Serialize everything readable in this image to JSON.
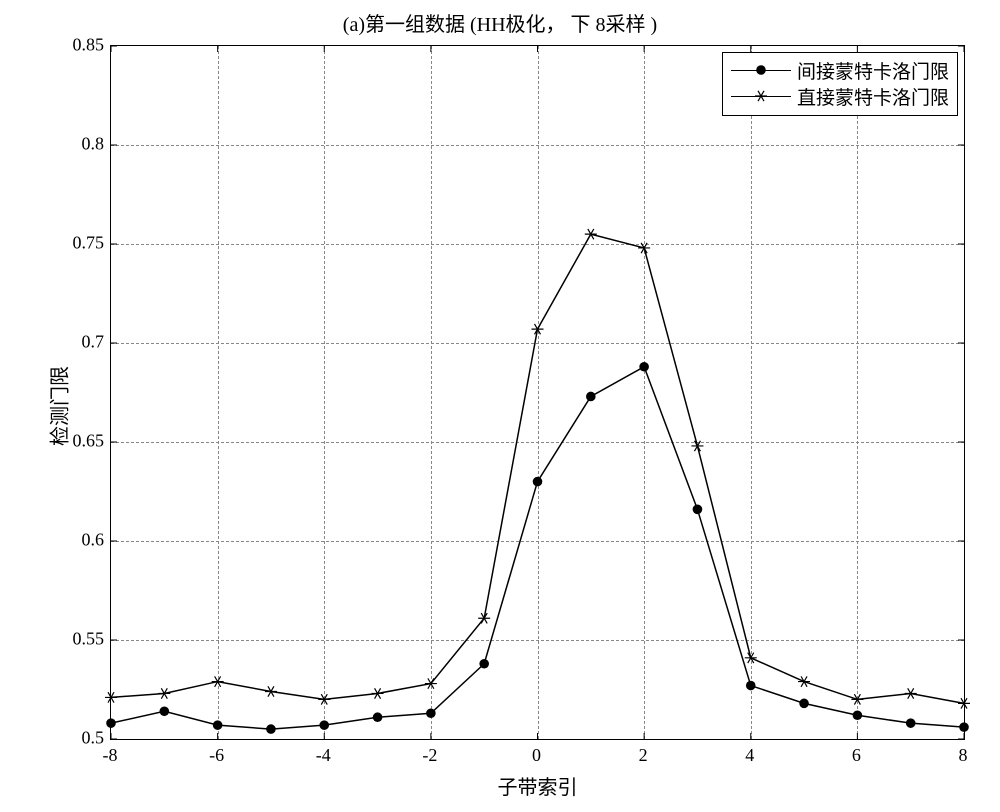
{
  "chart": {
    "type": "line",
    "title": "(a)第一组数据 (HH极化， 下 8采样 )",
    "xlabel": "子带索引",
    "ylabel": "检测门限",
    "xlim": [
      -8,
      8
    ],
    "ylim": [
      0.5,
      0.85
    ],
    "xticks": [
      -8,
      -6,
      -4,
      -2,
      0,
      2,
      4,
      6,
      8
    ],
    "yticks": [
      0.5,
      0.55,
      0.6,
      0.65,
      0.7,
      0.75,
      0.8,
      0.85
    ],
    "grid": true,
    "grid_color": "#888888",
    "grid_dash": "4 4",
    "background_color": "#ffffff",
    "axis_color": "#000000",
    "title_fontsize": 20,
    "label_fontsize": 20,
    "tick_fontsize": 18,
    "line_width": 1.5,
    "marker_size": 6,
    "legend": {
      "position": "upper-right",
      "entries": [
        {
          "series": "indirect",
          "label": "间接蒙特卡洛门限"
        },
        {
          "series": "direct",
          "label": "直接蒙特卡洛门限"
        }
      ]
    },
    "series": {
      "indirect": {
        "label": "间接蒙特卡洛门限",
        "color": "#000000",
        "marker": "dot",
        "marker_fill": "#000000",
        "x": [
          -8,
          -7,
          -6,
          -5,
          -4,
          -3,
          -2,
          -1,
          0,
          1,
          2,
          3,
          4,
          5,
          6,
          7,
          8
        ],
        "y": [
          0.508,
          0.514,
          0.507,
          0.505,
          0.507,
          0.511,
          0.513,
          0.538,
          0.63,
          0.673,
          0.688,
          0.616,
          0.527,
          0.518,
          0.512,
          0.508,
          0.506
        ]
      },
      "direct": {
        "label": "直接蒙特卡洛门限",
        "color": "#000000",
        "marker": "star",
        "marker_fill": "#000000",
        "x": [
          -8,
          -7,
          -6,
          -5,
          -4,
          -3,
          -2,
          -1,
          0,
          1,
          2,
          3,
          4,
          5,
          6,
          7,
          8
        ],
        "y": [
          0.521,
          0.523,
          0.529,
          0.524,
          0.52,
          0.523,
          0.528,
          0.561,
          0.707,
          0.755,
          0.748,
          0.648,
          0.541,
          0.529,
          0.52,
          0.523,
          0.518
        ]
      }
    }
  }
}
